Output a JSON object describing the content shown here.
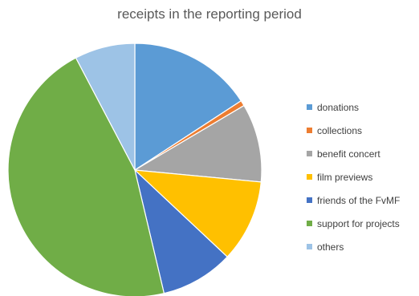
{
  "chart_data": {
    "type": "pie",
    "title": "receipts in the reporting period",
    "legend_position": "right",
    "slices": [
      {
        "label": "donations",
        "value": 15.8,
        "color": "#5B9BD5"
      },
      {
        "label": "collections",
        "value": 0.7,
        "color": "#ED7D31"
      },
      {
        "label": "benefit concert",
        "value": 10.0,
        "color": "#A5A5A5"
      },
      {
        "label": "film previews",
        "value": 10.5,
        "color": "#FFC000"
      },
      {
        "label": "friends of the FvMF",
        "value": 9.3,
        "color": "#4472C4"
      },
      {
        "label": "support for projects",
        "value": 46.0,
        "color": "#70AD47"
      },
      {
        "label": "others",
        "value": 7.7,
        "color": "#9DC3E6"
      }
    ]
  }
}
